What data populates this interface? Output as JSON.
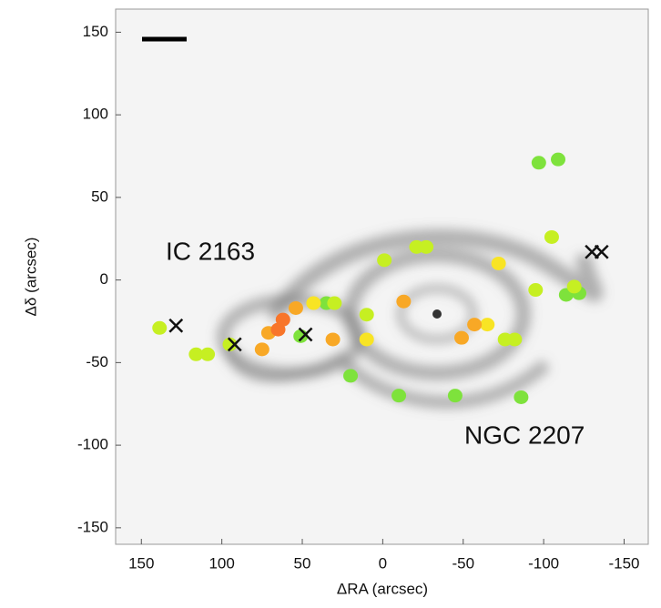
{
  "chart_data": {
    "type": "scatter",
    "xlabel": "ΔRA (arcsec)",
    "ylabel": "Δδ (arcsec)",
    "xlim": [
      166,
      -165
    ],
    "ylim": [
      -160,
      164
    ],
    "xticks": [
      150,
      100,
      50,
      0,
      -50,
      -100,
      -150
    ],
    "yticks": [
      -150,
      -100,
      -50,
      0,
      50,
      100,
      150
    ],
    "annotations": [
      "IC 2163",
      "NGC 2207"
    ],
    "series": [
      {
        "color": "#7ee23c",
        "marker": "dot",
        "x": [
          51,
          35,
          20,
          -10,
          -45,
          -86,
          -97,
          -109,
          -114,
          -122
        ],
        "values": [
          -34,
          -14,
          -58,
          -70,
          -70,
          -71,
          71,
          73,
          -9,
          -8
        ]
      },
      {
        "color": "#c6ef22",
        "marker": "dot",
        "x": [
          138.7,
          116,
          108.8,
          95,
          30,
          10,
          -1,
          -21,
          -27,
          -76,
          -82,
          -95,
          -105,
          -119
        ],
        "values": [
          -29,
          -45,
          -45,
          -39,
          -14,
          -21,
          12,
          20,
          20,
          -36,
          -36,
          -6,
          26,
          -4
        ]
      },
      {
        "color": "#f8e424",
        "marker": "dot",
        "x": [
          43,
          10,
          -65,
          -72
        ],
        "values": [
          -14,
          -36,
          -27,
          10
        ]
      },
      {
        "color": "#f8a826",
        "marker": "dot",
        "x": [
          75,
          71,
          54,
          31,
          -13,
          -49,
          -57
        ],
        "values": [
          -42,
          -32,
          -17,
          -36,
          -13,
          -35,
          -27
        ]
      },
      {
        "color": "#f8752a",
        "marker": "dot",
        "x": [
          65,
          62
        ],
        "values": [
          -30,
          -24
        ]
      },
      {
        "color": "#111111",
        "marker": "x",
        "x": [
          128.5,
          92,
          48,
          -130,
          -136
        ],
        "values": [
          -27.6,
          -39,
          -33,
          17,
          17
        ]
      }
    ]
  }
}
